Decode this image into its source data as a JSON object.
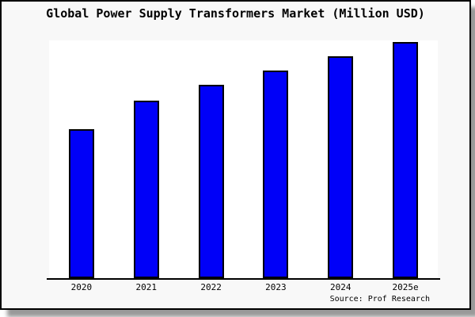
{
  "window": {
    "background": "#f8f8f8",
    "border_color": "#000000",
    "shadow_color": "#999999"
  },
  "chart": {
    "title": "Global Power Supply Transformers Market (Million USD)",
    "source": "Source: Prof Research",
    "plot_background": "#ffffff",
    "bar_fill_color": "#0000f8",
    "bar_border_color": "#000000",
    "axis_color": "#000000"
  },
  "chart_data": {
    "type": "bar",
    "title": "Global Power Supply Transformers Market (Million USD)",
    "categories": [
      "2020",
      "2021",
      "2022",
      "2023",
      "2024",
      "2025e"
    ],
    "values_relative": [
      63,
      75,
      82,
      88,
      94,
      100
    ],
    "value_note": "no y-axis scale or data labels shown; values are relative bar heights with 2025e = 100",
    "xlabel": "",
    "ylabel": "",
    "ylim_relative": [
      0,
      100
    ],
    "grid": false,
    "legend": false,
    "annotations": [
      "Source: Prof Research"
    ]
  }
}
